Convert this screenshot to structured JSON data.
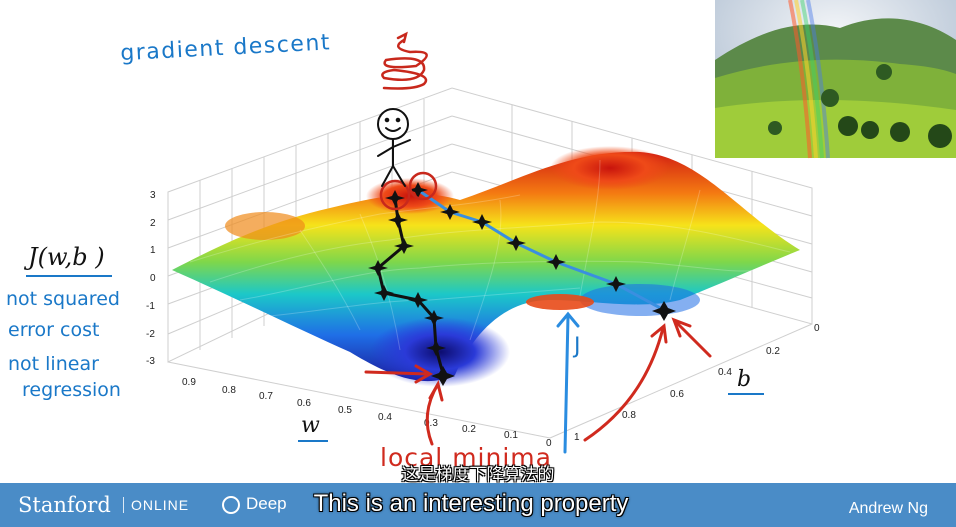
{
  "annotations": {
    "title": "gradient descent",
    "j_label": "J(w,b )",
    "note1": "not squared",
    "note2": "error cost",
    "note3": "not linear",
    "note4": "regression",
    "w_label": "w",
    "b_label": "b",
    "j_arrow_label": "J",
    "local_minima": "local minima"
  },
  "axes": {
    "z_ticks": [
      "3",
      "2",
      "1",
      "0",
      "-1",
      "-2",
      "-3"
    ],
    "w_ticks": [
      "0.9",
      "0.8",
      "0.7",
      "0.6",
      "0.5",
      "0.4",
      "0.3",
      "0.2",
      "0.1",
      "0"
    ],
    "b_ticks": [
      "0",
      "0.2",
      "0.4",
      "0.6",
      "0.8",
      "1"
    ]
  },
  "subtitles": {
    "chinese": "这是梯度下降算法的",
    "english": "This is an interesting property"
  },
  "footer": {
    "brand": "Stanford",
    "brand_online": "ONLINE",
    "partner": "Deep",
    "instructor": "Andrew Ng"
  },
  "colors": {
    "annotation_blue": "#1a78c8",
    "annotation_red": "#d02a1e",
    "footer_blue": "#4a8cc7"
  }
}
